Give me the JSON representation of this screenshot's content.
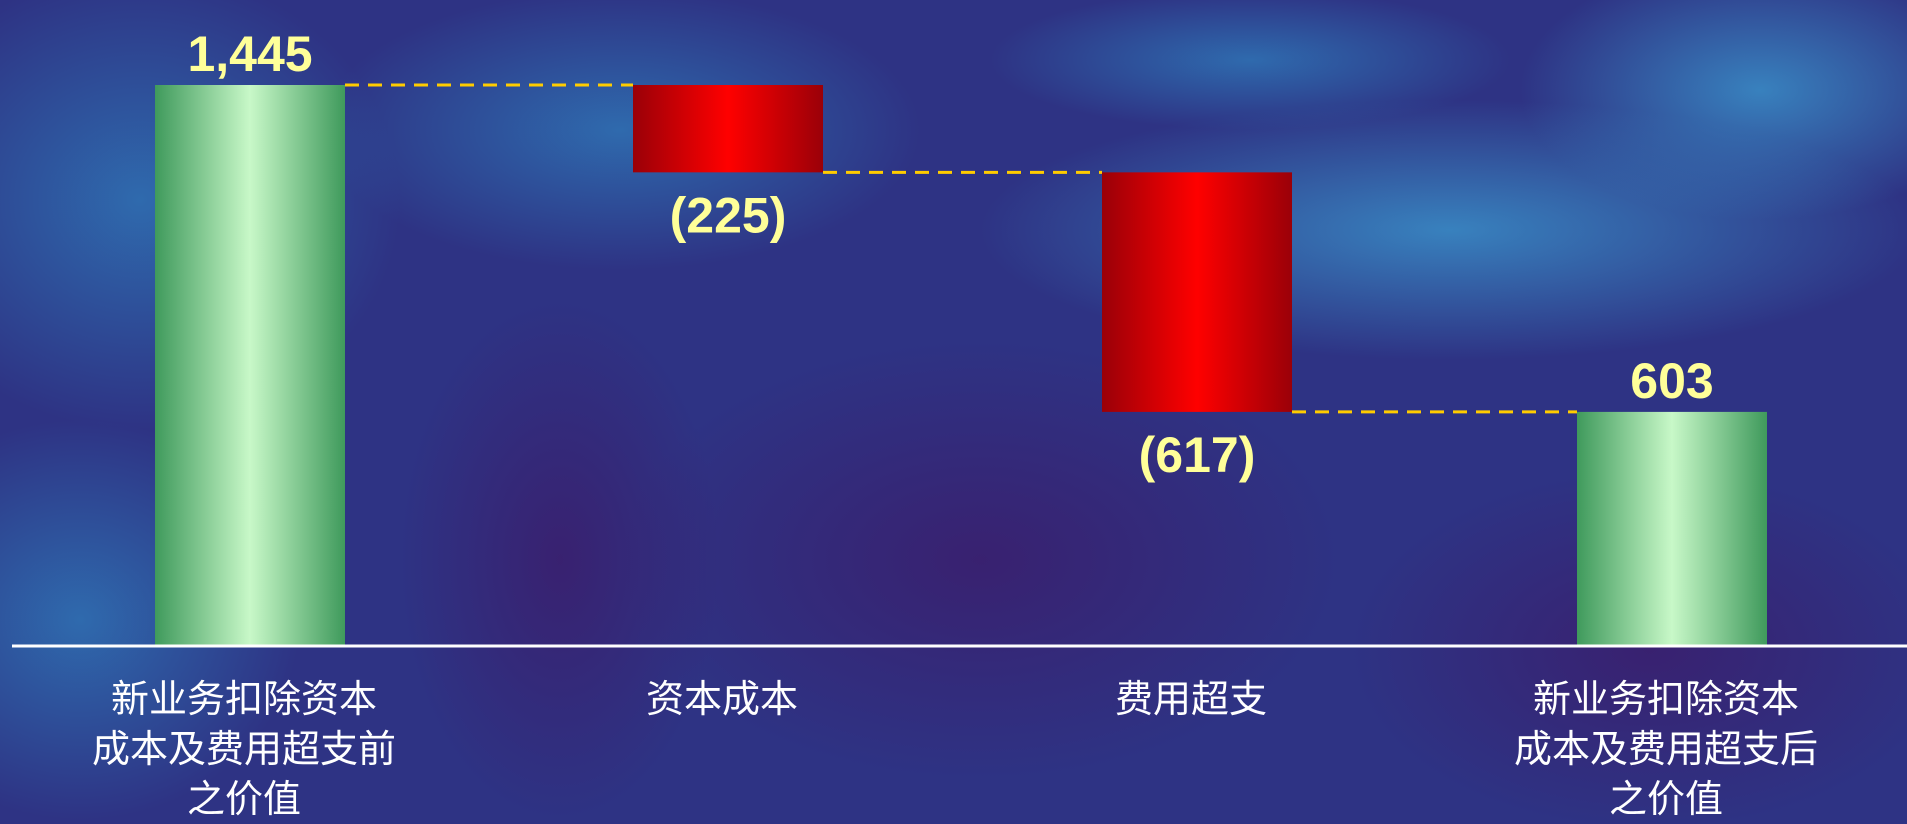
{
  "chart_data": {
    "type": "waterfall",
    "title": "",
    "xlabel": "",
    "ylabel": "",
    "ylim": [
      0,
      1445
    ],
    "grid": false,
    "legend": "none",
    "categories": [
      [
        "新业务扣除资本",
        "成本及费用超支前",
        "之价值"
      ],
      [
        "资本成本"
      ],
      [
        "费用超支"
      ],
      [
        "新业务扣除资本",
        "成本及费用超支后",
        "之价值"
      ]
    ],
    "values": [
      1445,
      -225,
      -617,
      603
    ],
    "kinds": [
      "total",
      "decrease",
      "decrease",
      "total"
    ],
    "value_labels": [
      "1,445",
      "(225)",
      "(617)",
      "603"
    ],
    "colors": {
      "total_edge": "#3f9a5c",
      "total_center": "#c8f8c8",
      "decrease_edge": "#9a0008",
      "decrease_center": "#ff0000",
      "connector": "#ffcc00",
      "baseline": "#ffffff",
      "value_text": "#ffff99",
      "category_text": "#ffffff",
      "background": "#2c2f80"
    }
  }
}
